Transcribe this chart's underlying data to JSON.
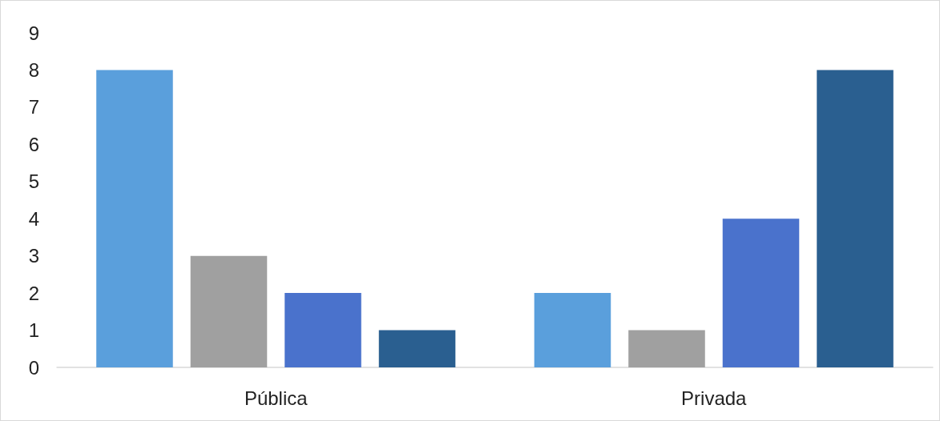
{
  "chart_data": {
    "type": "bar",
    "categories": [
      "Pública",
      "Privada"
    ],
    "series": [
      {
        "color": "#5a9fdc",
        "values": [
          8,
          2
        ]
      },
      {
        "color": "#a0a0a0",
        "values": [
          3,
          1
        ]
      },
      {
        "color": "#4a72cc",
        "values": [
          2,
          4
        ]
      },
      {
        "color": "#2a5f90",
        "values": [
          1,
          8
        ]
      }
    ],
    "ylim": [
      0,
      9
    ],
    "yticks": [
      0,
      1,
      2,
      3,
      4,
      5,
      6,
      7,
      8,
      9
    ],
    "grid": false
  }
}
